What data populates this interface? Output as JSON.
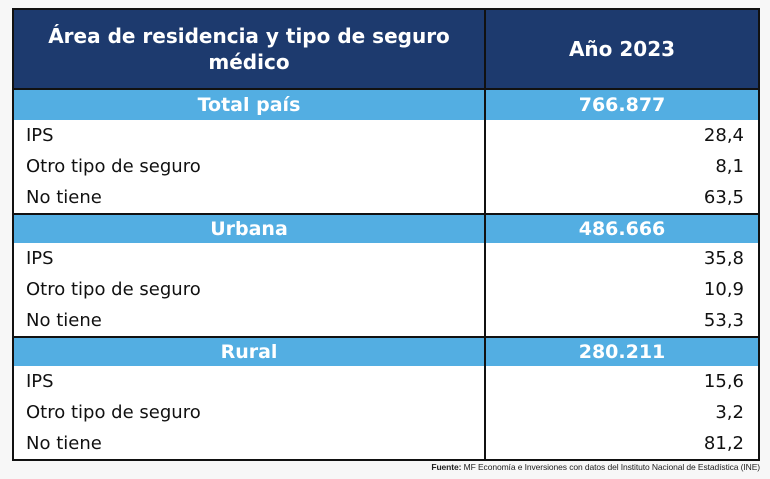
{
  "table": {
    "header": {
      "col1": "Área de residencia y tipo de seguro médico",
      "col2": "Año 2023"
    },
    "groups": [
      {
        "name": "Total país",
        "total": "766.877",
        "rows": [
          {
            "label": "IPS",
            "value": "28,4"
          },
          {
            "label": "Otro tipo de seguro",
            "value": "8,1"
          },
          {
            "label": "No tiene",
            "value": "63,5"
          }
        ]
      },
      {
        "name": "Urbana",
        "total": "486.666",
        "rows": [
          {
            "label": "IPS",
            "value": "35,8"
          },
          {
            "label": "Otro tipo de seguro",
            "value": "10,9"
          },
          {
            "label": "No tiene",
            "value": "53,3"
          }
        ]
      },
      {
        "name": "Rural",
        "total": "280.211",
        "rows": [
          {
            "label": "IPS",
            "value": "15,6"
          },
          {
            "label": "Otro tipo de seguro",
            "value": "3,2"
          },
          {
            "label": "No tiene",
            "value": "81,2"
          }
        ]
      }
    ]
  },
  "source": {
    "label": "Fuente:",
    "text": " MF Economía e Inversiones con datos del Instituto Nacional de Estadística (INE)"
  },
  "colors": {
    "header_bg": "#1d3a6e",
    "band_bg": "#53aee2",
    "border": "#111111"
  }
}
